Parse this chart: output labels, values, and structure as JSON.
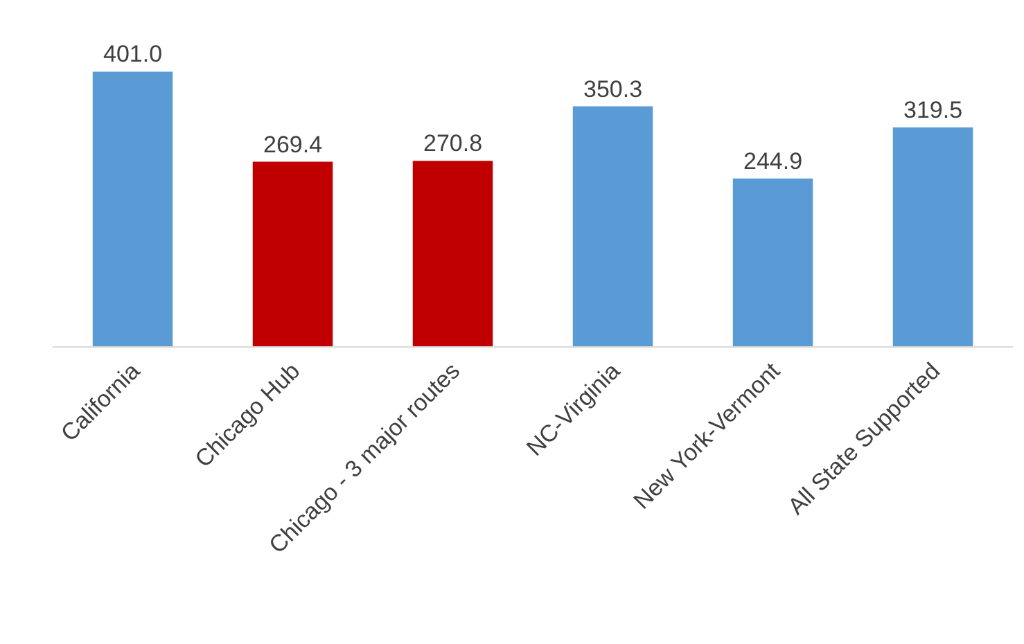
{
  "chart_data": {
    "type": "bar",
    "categories": [
      "California",
      "Chicago Hub",
      "Chicago - 3 major routes",
      "NC-Virginia",
      "New York-Vermont",
      "All State Supported"
    ],
    "values": [
      401.0,
      269.4,
      270.8,
      350.3,
      244.9,
      319.5
    ],
    "colors": [
      "#5b9bd5",
      "#c00000",
      "#c00000",
      "#5b9bd5",
      "#5b9bd5",
      "#5b9bd5"
    ],
    "value_labels": [
      "401.0",
      "269.4",
      "270.8",
      "350.3",
      "244.9",
      "319.5"
    ],
    "grid": false,
    "legend": false
  }
}
